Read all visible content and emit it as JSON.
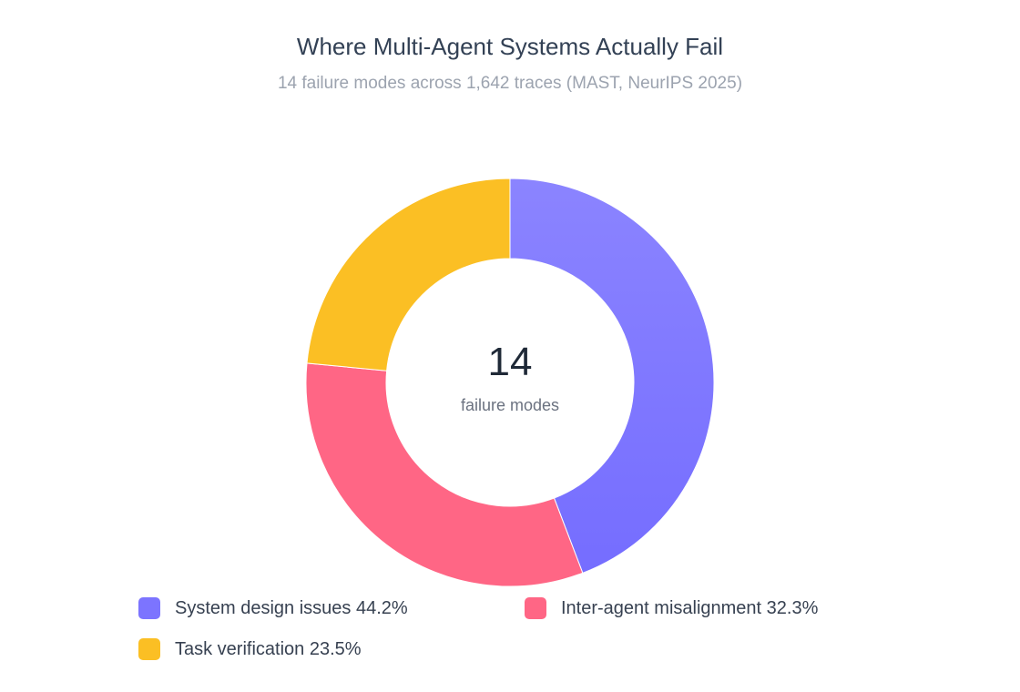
{
  "header": {
    "title": "Where Multi-Agent Systems Actually Fail",
    "subtitle": "14 failure modes across 1,642 traces (MAST, NeurIPS 2025)"
  },
  "center": {
    "value": "14",
    "label": "failure modes"
  },
  "legend": [
    {
      "label": "System design issues 44.2%",
      "color": "#7c74ff"
    },
    {
      "label": "Inter-agent misalignment 32.3%",
      "color": "#ff6685"
    },
    {
      "label": "Task verification 23.5%",
      "color": "#fbbf24"
    }
  ],
  "chart_data": {
    "type": "pie",
    "title": "Where Multi-Agent Systems Actually Fail",
    "subtitle": "14 failure modes across 1,642 traces (MAST, NeurIPS 2025)",
    "donut": true,
    "center_text": "14",
    "center_subtext": "failure modes",
    "legend_position": "bottom",
    "series": [
      {
        "name": "System design issues",
        "value": 44.2,
        "color": "#7c74ff"
      },
      {
        "name": "Inter-agent misalignment",
        "value": 32.3,
        "color": "#ff6685"
      },
      {
        "name": "Task verification",
        "value": 23.5,
        "color": "#fbbf24"
      }
    ]
  }
}
